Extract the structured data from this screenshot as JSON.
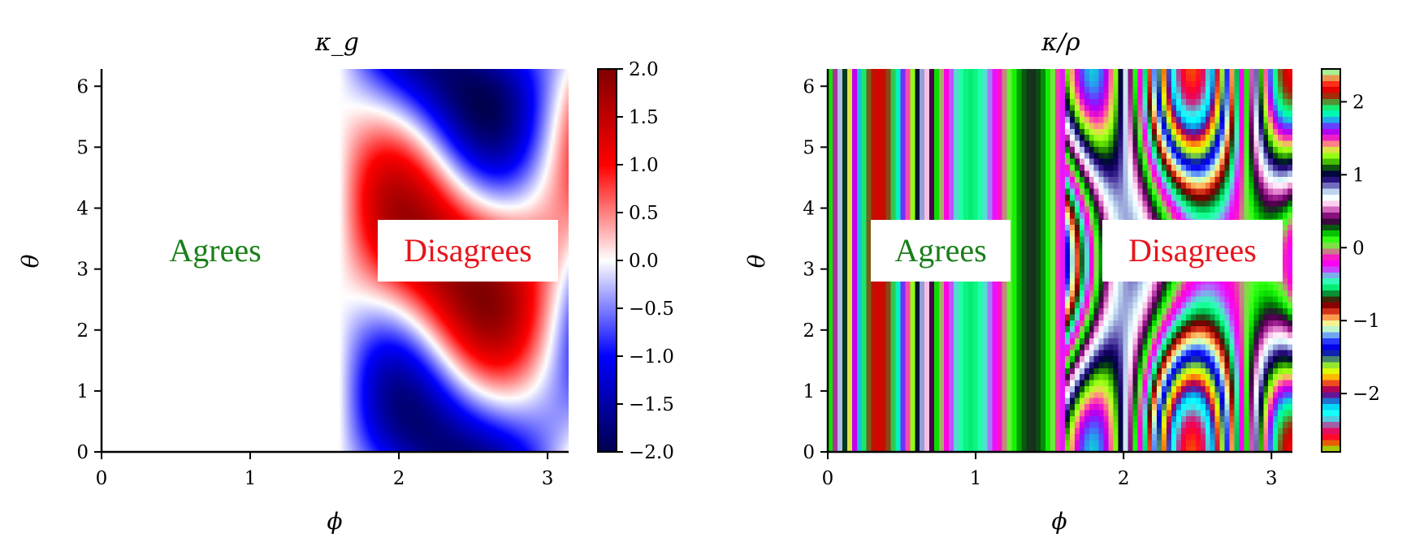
{
  "chart_data": [
    {
      "type": "heatmap",
      "title": "κ_g",
      "xlabel": "ϕ",
      "ylabel": "θ",
      "xlim": [
        0,
        3.1416
      ],
      "ylim": [
        0,
        6.2832
      ],
      "xticks": [
        "0",
        "1",
        "2",
        "3"
      ],
      "yticks": [
        "0",
        "1",
        "2",
        "3",
        "4",
        "5",
        "6"
      ],
      "colormap": "seismic",
      "colorbar": {
        "vmin": -2.0,
        "vmax": 2.0,
        "ticks": [
          "−2.0",
          "−1.5",
          "−1.0",
          "−0.5",
          "0.0",
          "0.5",
          "1.0",
          "1.5",
          "2.0"
        ]
      },
      "annotations": [
        {
          "text": "Agrees",
          "color": "#1a7f1a",
          "x": 0.75,
          "y": 3.3
        },
        {
          "text": "Disagrees",
          "color": "#e8141a",
          "x": 2.5,
          "y": 3.3
        }
      ]
    },
    {
      "type": "heatmap",
      "title": "κ/ρ",
      "xlabel": "ϕ",
      "ylabel": "θ",
      "xlim": [
        0,
        3.1416
      ],
      "ylim": [
        0,
        6.2832
      ],
      "xticks": [
        "0",
        "1",
        "2",
        "3"
      ],
      "yticks": [
        "0",
        "1",
        "2",
        "3",
        "4",
        "5",
        "6"
      ],
      "colormap": "flag/prism (cyclic)",
      "colorbar": {
        "vmin": -2.8,
        "vmax": 2.45,
        "ticks": [
          "−2",
          "−1",
          "0",
          "1",
          "2"
        ]
      },
      "annotations": [
        {
          "text": "Agrees",
          "color": "#1a7f1a",
          "x": 0.75,
          "y": 3.3
        },
        {
          "text": "Disagrees",
          "color": "#e8141a",
          "x": 2.5,
          "y": 3.3
        }
      ]
    }
  ]
}
